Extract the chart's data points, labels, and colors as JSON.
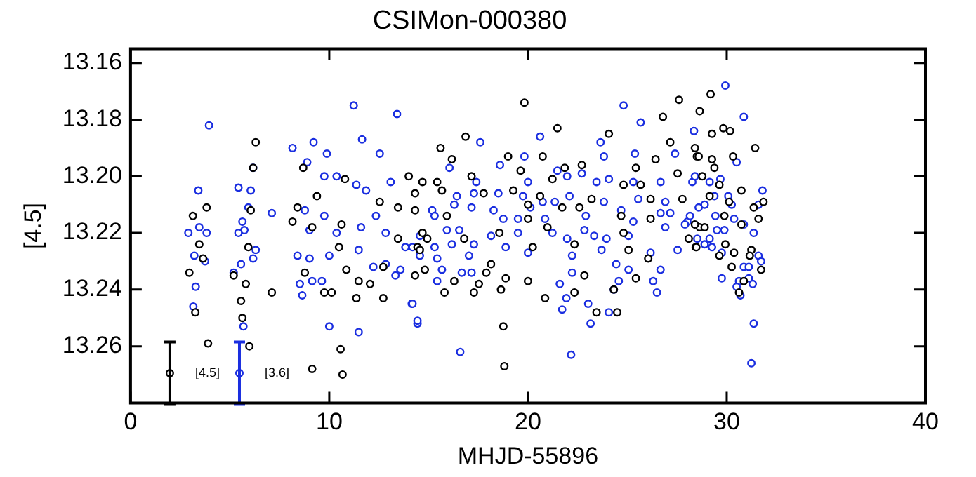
{
  "chart_data": {
    "type": "scatter",
    "title": "CSIMon-000380",
    "xlabel": "MHJD-55896",
    "ylabel": "[4.5]",
    "xlim": [
      0,
      40
    ],
    "xticks": [
      0,
      10,
      20,
      30,
      40
    ],
    "ylim": [
      13.28,
      13.155
    ],
    "yticks": [
      {
        "value": 13.16,
        "label": "13.16"
      },
      {
        "value": 13.18,
        "label": "13.18"
      },
      {
        "value": 13.2,
        "label": "13.20"
      },
      {
        "value": 13.22,
        "label": "13.22"
      },
      {
        "value": 13.24,
        "label": "13.24"
      },
      {
        "value": 13.26,
        "label": "13.26"
      }
    ],
    "grid": false,
    "legend": false,
    "marker": "circle",
    "annotations": [
      "[4.5]",
      "[3.6]"
    ],
    "series": [
      {
        "color": "#000000",
        "x": [
          3.14,
          3.46,
          3.65,
          2.96,
          3.26,
          3.83,
          3.9,
          6.3,
          6.17,
          6.05,
          5.93,
          5.19,
          5.8,
          5.56,
          5.63,
          5.98,
          7.11,
          8.69,
          8.4,
          9.38,
          8.15,
          9.14,
          8.77,
          9.75,
          10.12,
          10.62,
          10.49,
          10.79,
          10.86,
          11.48,
          11.36,
          12.05,
          12.72,
          12.54,
          13.46,
          14.0,
          14.44,
          10.57,
          9.14,
          10.67,
          12.72,
          13.46,
          19.82,
          21.48,
          16.86,
          15.6,
          16.17,
          19.0,
          20.74,
          24.07,
          26.79,
          27.6,
          27.16,
          28.5,
          26.42,
          25.43,
          22.71,
          21.85,
          14.69,
          15.43,
          17.16,
          19.63,
          21.23,
          24.81,
          25.67,
          27.53,
          14.32,
          15.67,
          17.77,
          19.26,
          20.61,
          23.2,
          26.17,
          27.77,
          14.32,
          15.92,
          20.0,
          21.72,
          22.59,
          24.69,
          26.17,
          14.69,
          14.93,
          18.56,
          20.0,
          20.98,
          22.34,
          24.81,
          28.64,
          14.56,
          16.79,
          20.24,
          25.06,
          26.05,
          28.09,
          28.44,
          14.81,
          18.14,
          17.9,
          16.29,
          17.53,
          18.88,
          20.0,
          22.84,
          25.43,
          14.32,
          15.8,
          17.28,
          18.64,
          20.86,
          22.34,
          24.32,
          23.45,
          24.49,
          18.76,
          18.81,
          29.19,
          28.64,
          29.26,
          29.83,
          30.17,
          31.43,
          28.4,
          28.59,
          29.26,
          30.32,
          29.38,
          28.77,
          29.63,
          30.74,
          29.14,
          30.12,
          31.36,
          31.85,
          29.88,
          30.74,
          31.6,
          28.89,
          28.4,
          28.47,
          29.93,
          29.63,
          30.37,
          31.24,
          31.16,
          30.25,
          31.73,
          30.86,
          30.62
        ],
        "values": [
          13.214,
          13.224,
          13.229,
          13.234,
          13.248,
          13.211,
          13.259,
          13.188,
          13.197,
          13.212,
          13.225,
          13.235,
          13.238,
          13.244,
          13.25,
          13.26,
          13.241,
          13.197,
          13.211,
          13.207,
          13.216,
          13.218,
          13.234,
          13.241,
          13.241,
          13.217,
          13.225,
          13.201,
          13.233,
          13.237,
          13.243,
          13.238,
          13.243,
          13.209,
          13.211,
          13.2,
          13.225,
          13.261,
          13.268,
          13.27,
          13.232,
          13.222,
          13.174,
          13.183,
          13.186,
          13.19,
          13.194,
          13.193,
          13.193,
          13.185,
          13.179,
          13.173,
          13.188,
          13.193,
          13.194,
          13.197,
          13.196,
          13.197,
          13.202,
          13.202,
          13.2,
          13.198,
          13.201,
          13.203,
          13.203,
          13.199,
          13.206,
          13.205,
          13.206,
          13.205,
          13.207,
          13.208,
          13.208,
          13.208,
          13.212,
          13.214,
          13.21,
          13.211,
          13.211,
          13.214,
          13.215,
          13.22,
          13.222,
          13.22,
          13.215,
          13.218,
          13.224,
          13.22,
          13.218,
          13.226,
          13.222,
          13.225,
          13.226,
          13.229,
          13.222,
          13.225,
          13.233,
          13.231,
          13.234,
          13.237,
          13.238,
          13.236,
          13.237,
          13.235,
          13.236,
          13.235,
          13.241,
          13.241,
          13.24,
          13.243,
          13.241,
          13.24,
          13.248,
          13.248,
          13.253,
          13.267,
          13.171,
          13.177,
          13.185,
          13.183,
          13.184,
          13.19,
          13.19,
          13.193,
          13.194,
          13.193,
          13.197,
          13.2,
          13.203,
          13.205,
          13.207,
          13.209,
          13.211,
          13.209,
          13.214,
          13.217,
          13.215,
          13.218,
          13.217,
          13.225,
          13.224,
          13.228,
          13.227,
          13.226,
          13.228,
          13.232,
          13.233,
          13.237,
          13.241
        ]
      },
      {
        "color": "#1a2ee0",
        "x": [
          3.95,
          3.41,
          2.91,
          3.46,
          3.83,
          3.21,
          3.75,
          3.28,
          3.16,
          5.43,
          6.05,
          6.17,
          5.93,
          5.63,
          5.73,
          5.43,
          6.3,
          6.17,
          5.56,
          5.19,
          5.68,
          7.11,
          8.15,
          8.89,
          9.21,
          9.88,
          11.23,
          11.65,
          12.54,
          13.41,
          9.75,
          10.37,
          11.36,
          11.85,
          13.09,
          8.77,
          9.75,
          9.01,
          10.37,
          11.6,
          12.35,
          12.84,
          13.83,
          8.4,
          9.01,
          10.0,
          11.48,
          12.22,
          12.84,
          13.58,
          8.52,
          9.63,
          9.14,
          8.64,
          13.33,
          14.15,
          10.0,
          11.48,
          14.44,
          24.81,
          25.67,
          28.35,
          17.6,
          20.61,
          23.65,
          19.82,
          23.82,
          25.38,
          27.4,
          16.05,
          18.59,
          21.48,
          22.71,
          23.45,
          24.07,
          25.3,
          26.67,
          28.27,
          17.4,
          20.0,
          21.97,
          16.42,
          17.28,
          18.51,
          19.75,
          20.74,
          22.09,
          23.82,
          25.55,
          26.91,
          16.29,
          15.18,
          17.16,
          18.27,
          20.12,
          21.35,
          24.69,
          26.67,
          15.3,
          18.76,
          19.5,
          20.86,
          22.91,
          25.3,
          27.16,
          28.02,
          14.56,
          15.92,
          16.54,
          18.14,
          19.5,
          21.23,
          22.84,
          23.95,
          26.91,
          27.9,
          14.19,
          15.3,
          16.17,
          17.28,
          18.88,
          20.0,
          21.97,
          23.33,
          25.06,
          27.53,
          14.56,
          15.43,
          17.03,
          22.22,
          23.7,
          26.17,
          15.67,
          16.67,
          17.16,
          22.22,
          24.44,
          25.06,
          26.67,
          15.43,
          24.57,
          26.3,
          21.6,
          26.49,
          24.32,
          21.93,
          23.03,
          21.72,
          24.07,
          23.15,
          14.19,
          14.44,
          16.59,
          22.17,
          29.93,
          30.86,
          28.35,
          30.5,
          28.4,
          29.14,
          29.68,
          31.8,
          29.38,
          30.08,
          28.59,
          28.89,
          30.25,
          31.6,
          28.15,
          29.43,
          30.37,
          30.86,
          29.88,
          29.51,
          28.52,
          29.14,
          31.36,
          29.26,
          28.89,
          29.75,
          31.6,
          31.73,
          30.86,
          31.11,
          29.75,
          30.62,
          31.11,
          30.5,
          31.31,
          30.69,
          31.36,
          31.24
        ],
        "values": [
          13.182,
          13.205,
          13.22,
          13.218,
          13.22,
          13.228,
          13.23,
          13.239,
          13.246,
          13.204,
          13.205,
          13.197,
          13.211,
          13.216,
          13.219,
          13.22,
          13.226,
          13.229,
          13.231,
          13.234,
          13.253,
          13.213,
          13.19,
          13.195,
          13.188,
          13.192,
          13.175,
          13.187,
          13.192,
          13.178,
          13.2,
          13.2,
          13.203,
          13.205,
          13.202,
          13.212,
          13.214,
          13.219,
          13.22,
          13.218,
          13.214,
          13.22,
          13.225,
          13.228,
          13.229,
          13.228,
          13.226,
          13.232,
          13.231,
          13.233,
          13.238,
          13.237,
          13.237,
          13.242,
          13.235,
          13.245,
          13.253,
          13.255,
          13.252,
          13.175,
          13.181,
          13.184,
          13.188,
          13.186,
          13.188,
          13.193,
          13.193,
          13.192,
          13.192,
          13.197,
          13.196,
          13.198,
          13.199,
          13.202,
          13.201,
          13.202,
          13.202,
          13.202,
          13.202,
          13.202,
          13.2,
          13.207,
          13.206,
          13.206,
          13.207,
          13.209,
          13.207,
          13.209,
          13.208,
          13.209,
          13.21,
          13.212,
          13.211,
          13.212,
          13.211,
          13.209,
          13.212,
          13.213,
          13.214,
          13.215,
          13.215,
          13.215,
          13.214,
          13.216,
          13.213,
          13.216,
          13.221,
          13.219,
          13.219,
          13.221,
          13.22,
          13.22,
          13.219,
          13.222,
          13.218,
          13.217,
          13.225,
          13.225,
          13.224,
          13.224,
          13.225,
          13.227,
          13.222,
          13.221,
          13.221,
          13.226,
          13.228,
          13.229,
          13.228,
          13.228,
          13.226,
          13.227,
          13.233,
          13.234,
          13.234,
          13.234,
          13.231,
          13.233,
          13.233,
          13.237,
          13.237,
          13.237,
          13.238,
          13.241,
          13.24,
          13.243,
          13.245,
          13.247,
          13.248,
          13.252,
          13.245,
          13.251,
          13.262,
          13.263,
          13.168,
          13.179,
          13.184,
          13.195,
          13.2,
          13.202,
          13.201,
          13.205,
          13.207,
          13.207,
          13.211,
          13.21,
          13.21,
          13.21,
          13.214,
          13.214,
          13.215,
          13.217,
          13.219,
          13.219,
          13.222,
          13.222,
          13.22,
          13.225,
          13.224,
          13.227,
          13.228,
          13.23,
          13.232,
          13.232,
          13.236,
          13.237,
          13.236,
          13.239,
          13.238,
          13.242,
          13.252,
          13.266
        ]
      },
      {
        "color": "#000000",
        "x": [
          1.98
        ],
        "values": [
          13.2695
        ],
        "errors": [
          0.011
        ]
      },
      {
        "color": "#1a2ee0",
        "x": [
          5.48
        ],
        "values": [
          13.2695
        ],
        "errors": [
          0.011
        ]
      }
    ]
  }
}
